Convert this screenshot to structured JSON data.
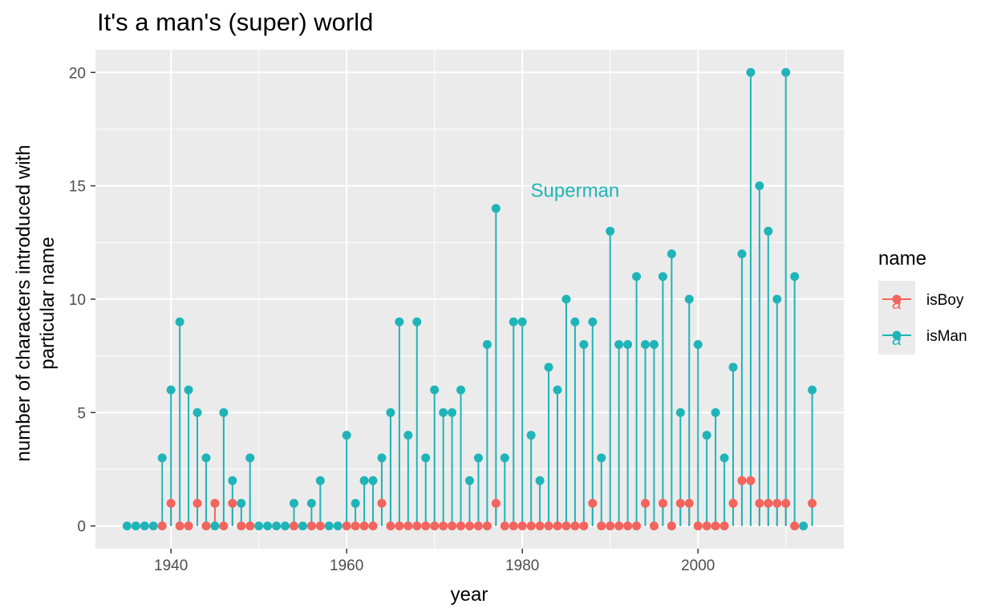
{
  "chart_data": {
    "type": "lollipop",
    "title": "It's a man's (super) world",
    "xlabel": "year",
    "ylabel_lines": [
      "number of characters introduced with",
      "particular name"
    ],
    "xlim": [
      1931.4,
      2016.6
    ],
    "ylim": [
      -1,
      21
    ],
    "x_ticks": [
      1940,
      1960,
      1980,
      2000
    ],
    "y_ticks": [
      0,
      5,
      10,
      15,
      20
    ],
    "grid": true,
    "legend": {
      "title": "name",
      "position": "right",
      "entries": [
        "isBoy",
        "isMan"
      ]
    },
    "annotation": {
      "text": "Superman",
      "x": 1986,
      "y": 14.8,
      "series": "isMan"
    },
    "series": [
      {
        "name": "isMan",
        "color": "#1fb4b8",
        "points": [
          [
            1935,
            0
          ],
          [
            1936,
            0
          ],
          [
            1937,
            0
          ],
          [
            1938,
            0
          ],
          [
            1939,
            3
          ],
          [
            1940,
            6
          ],
          [
            1941,
            9
          ],
          [
            1942,
            6
          ],
          [
            1943,
            5
          ],
          [
            1944,
            3
          ],
          [
            1945,
            0
          ],
          [
            1946,
            5
          ],
          [
            1947,
            2
          ],
          [
            1948,
            1
          ],
          [
            1949,
            3
          ],
          [
            1950,
            0
          ],
          [
            1951,
            0
          ],
          [
            1952,
            0
          ],
          [
            1953,
            0
          ],
          [
            1954,
            1
          ],
          [
            1955,
            0
          ],
          [
            1956,
            1
          ],
          [
            1957,
            2
          ],
          [
            1958,
            0
          ],
          [
            1959,
            0
          ],
          [
            1960,
            4
          ],
          [
            1961,
            1
          ],
          [
            1962,
            2
          ],
          [
            1963,
            2
          ],
          [
            1964,
            3
          ],
          [
            1965,
            5
          ],
          [
            1966,
            9
          ],
          [
            1967,
            4
          ],
          [
            1968,
            9
          ],
          [
            1969,
            3
          ],
          [
            1970,
            6
          ],
          [
            1971,
            5
          ],
          [
            1972,
            5
          ],
          [
            1973,
            6
          ],
          [
            1974,
            2
          ],
          [
            1975,
            3
          ],
          [
            1976,
            8
          ],
          [
            1977,
            14
          ],
          [
            1978,
            3
          ],
          [
            1979,
            9
          ],
          [
            1980,
            9
          ],
          [
            1981,
            4
          ],
          [
            1982,
            2
          ],
          [
            1983,
            7
          ],
          [
            1984,
            6
          ],
          [
            1985,
            10
          ],
          [
            1986,
            9
          ],
          [
            1987,
            8
          ],
          [
            1988,
            9
          ],
          [
            1989,
            3
          ],
          [
            1990,
            13
          ],
          [
            1991,
            8
          ],
          [
            1992,
            8
          ],
          [
            1993,
            11
          ],
          [
            1994,
            8
          ],
          [
            1995,
            8
          ],
          [
            1996,
            11
          ],
          [
            1997,
            12
          ],
          [
            1998,
            5
          ],
          [
            1999,
            10
          ],
          [
            2000,
            8
          ],
          [
            2001,
            4
          ],
          [
            2002,
            5
          ],
          [
            2003,
            3
          ],
          [
            2004,
            7
          ],
          [
            2005,
            12
          ],
          [
            2006,
            20
          ],
          [
            2007,
            15
          ],
          [
            2008,
            13
          ],
          [
            2009,
            10
          ],
          [
            2010,
            20
          ],
          [
            2011,
            11
          ],
          [
            2012,
            0
          ],
          [
            2013,
            6
          ]
        ]
      },
      {
        "name": "isBoy",
        "color": "#f2645d",
        "points": [
          [
            1939,
            0
          ],
          [
            1940,
            1
          ],
          [
            1941,
            0
          ],
          [
            1942,
            0
          ],
          [
            1943,
            1
          ],
          [
            1944,
            0
          ],
          [
            1945,
            1
          ],
          [
            1946,
            0
          ],
          [
            1947,
            1
          ],
          [
            1948,
            0
          ],
          [
            1949,
            0
          ],
          [
            1954,
            0
          ],
          [
            1956,
            0
          ],
          [
            1957,
            0
          ],
          [
            1960,
            0
          ],
          [
            1961,
            0
          ],
          [
            1962,
            0
          ],
          [
            1963,
            0
          ],
          [
            1964,
            1
          ],
          [
            1965,
            0
          ],
          [
            1966,
            0
          ],
          [
            1967,
            0
          ],
          [
            1968,
            0
          ],
          [
            1969,
            0
          ],
          [
            1970,
            0
          ],
          [
            1971,
            0
          ],
          [
            1972,
            0
          ],
          [
            1973,
            0
          ],
          [
            1974,
            0
          ],
          [
            1975,
            0
          ],
          [
            1976,
            0
          ],
          [
            1977,
            1
          ],
          [
            1978,
            0
          ],
          [
            1979,
            0
          ],
          [
            1980,
            0
          ],
          [
            1981,
            0
          ],
          [
            1982,
            0
          ],
          [
            1983,
            0
          ],
          [
            1984,
            0
          ],
          [
            1985,
            0
          ],
          [
            1986,
            0
          ],
          [
            1987,
            0
          ],
          [
            1988,
            1
          ],
          [
            1989,
            0
          ],
          [
            1990,
            0
          ],
          [
            1991,
            0
          ],
          [
            1992,
            0
          ],
          [
            1993,
            0
          ],
          [
            1994,
            1
          ],
          [
            1995,
            0
          ],
          [
            1996,
            1
          ],
          [
            1997,
            0
          ],
          [
            1998,
            1
          ],
          [
            1999,
            1
          ],
          [
            2000,
            0
          ],
          [
            2001,
            0
          ],
          [
            2002,
            0
          ],
          [
            2003,
            0
          ],
          [
            2004,
            1
          ],
          [
            2005,
            2
          ],
          [
            2006,
            2
          ],
          [
            2007,
            1
          ],
          [
            2008,
            1
          ],
          [
            2009,
            1
          ],
          [
            2010,
            1
          ],
          [
            2011,
            0
          ],
          [
            2013,
            1
          ]
        ]
      }
    ]
  }
}
